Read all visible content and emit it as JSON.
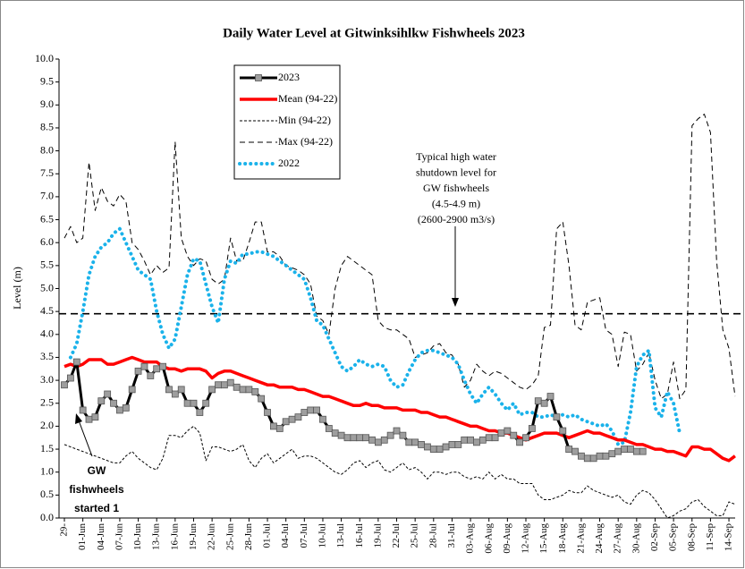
{
  "chart_data": {
    "type": "line",
    "title": "Daily Water Level at Gitwinksihlkw Fishwheels 2023",
    "y_label": "Level (m)",
    "categories": [
      "29-",
      null,
      null,
      "01-Jun",
      null,
      null,
      "04-Jun",
      null,
      null,
      "07-Jun",
      null,
      null,
      "10-Jun",
      null,
      null,
      "13-Jun",
      null,
      null,
      "16-Jun",
      null,
      null,
      "19-Jun",
      null,
      null,
      "22-Jun",
      null,
      null,
      "25-Jun",
      null,
      null,
      "28-Jun",
      null,
      null,
      "01-Jul",
      null,
      null,
      "04-Jul",
      null,
      null,
      "07-Jul",
      null,
      null,
      "10-Jul",
      null,
      null,
      "13-Jul",
      null,
      null,
      "16-Jul",
      null,
      null,
      "19-Jul",
      null,
      null,
      "22-Jul",
      null,
      null,
      "25-Jul",
      null,
      null,
      "28-Jul",
      null,
      null,
      "31-Jul",
      null,
      null,
      "03-Aug",
      null,
      null,
      "06-Aug",
      null,
      null,
      "09-Aug",
      null,
      null,
      "12-Aug",
      null,
      null,
      "15-Aug",
      null,
      null,
      "18-Aug",
      null,
      null,
      "21-Aug",
      null,
      null,
      "24-Aug",
      null,
      null,
      "27-Aug",
      null,
      null,
      "30-Aug",
      null,
      null,
      "02-Sep",
      null,
      null,
      "05-Sep",
      null,
      null,
      "08-Sep",
      null,
      null,
      "11-Sep",
      null,
      null,
      "14-Sep",
      null
    ],
    "series": [
      {
        "name": "2023",
        "color": "#000000",
        "marker_color": "#9e9e9e",
        "line_style": "solid-marker",
        "values": [
          2.9,
          3.05,
          3.4,
          2.35,
          2.15,
          2.2,
          2.55,
          2.7,
          2.5,
          2.35,
          2.4,
          2.8,
          3.2,
          3.3,
          3.1,
          3.25,
          3.3,
          2.8,
          2.7,
          2.8,
          2.5,
          2.5,
          2.3,
          2.5,
          2.8,
          2.9,
          2.9,
          2.95,
          2.85,
          2.8,
          2.8,
          2.75,
          2.6,
          2.3,
          2.0,
          1.95,
          2.1,
          2.15,
          2.2,
          2.3,
          2.35,
          2.35,
          2.15,
          1.95,
          1.85,
          1.8,
          1.75,
          1.75,
          1.75,
          1.75,
          1.7,
          1.65,
          1.7,
          1.8,
          1.9,
          1.8,
          1.65,
          1.65,
          1.6,
          1.55,
          1.5,
          1.5,
          1.55,
          1.6,
          1.6,
          1.7,
          1.7,
          1.65,
          1.7,
          1.75,
          1.75,
          1.85,
          1.9,
          1.8,
          1.65,
          1.75,
          1.95,
          2.55,
          2.5,
          2.65,
          2.2,
          1.9,
          1.5,
          1.45,
          1.35,
          1.3,
          1.3,
          1.35,
          1.35,
          1.4,
          1.45,
          1.5,
          1.5,
          1.45,
          1.45,
          null,
          null,
          null,
          null,
          null,
          null,
          null,
          null,
          null,
          null,
          null,
          null,
          null,
          null,
          null
        ]
      },
      {
        "name": "Mean (94-22)",
        "color": "#ff0000",
        "line_style": "thick",
        "values": [
          3.3,
          3.35,
          3.3,
          3.35,
          3.45,
          3.45,
          3.45,
          3.35,
          3.35,
          3.4,
          3.45,
          3.5,
          3.45,
          3.4,
          3.4,
          3.4,
          3.3,
          3.25,
          3.25,
          3.2,
          3.25,
          3.25,
          3.25,
          3.2,
          3.05,
          3.15,
          3.2,
          3.2,
          3.15,
          3.1,
          3.05,
          3.0,
          2.95,
          2.9,
          2.9,
          2.85,
          2.85,
          2.85,
          2.8,
          2.8,
          2.75,
          2.7,
          2.65,
          2.65,
          2.6,
          2.55,
          2.5,
          2.45,
          2.45,
          2.5,
          2.45,
          2.45,
          2.4,
          2.4,
          2.4,
          2.35,
          2.35,
          2.35,
          2.3,
          2.3,
          2.25,
          2.2,
          2.2,
          2.15,
          2.1,
          2.05,
          2.0,
          2.0,
          1.95,
          1.9,
          1.9,
          1.85,
          1.85,
          1.8,
          1.75,
          1.7,
          1.75,
          1.8,
          1.85,
          1.85,
          1.85,
          1.8,
          1.75,
          1.8,
          1.85,
          1.9,
          1.85,
          1.85,
          1.8,
          1.75,
          1.7,
          1.7,
          1.65,
          1.6,
          1.6,
          1.55,
          1.5,
          1.5,
          1.45,
          1.45,
          1.4,
          1.35,
          1.55,
          1.55,
          1.5,
          1.5,
          1.4,
          1.3,
          1.25,
          1.35
        ]
      },
      {
        "name": "Min (94-22)",
        "color": "#000000",
        "line_style": "fine-dash",
        "values": [
          1.6,
          1.55,
          1.5,
          1.45,
          1.4,
          1.35,
          1.3,
          1.25,
          1.2,
          1.2,
          1.35,
          1.45,
          1.3,
          1.2,
          1.1,
          1.05,
          1.3,
          1.8,
          1.8,
          1.75,
          1.9,
          2.0,
          1.85,
          1.25,
          1.55,
          1.55,
          1.5,
          1.45,
          1.5,
          1.6,
          1.25,
          1.1,
          1.3,
          1.4,
          1.2,
          1.3,
          1.4,
          1.5,
          1.3,
          1.35,
          1.35,
          1.3,
          1.2,
          1.1,
          1.0,
          0.95,
          1.05,
          1.2,
          1.25,
          1.1,
          1.2,
          1.25,
          1.05,
          1.0,
          1.1,
          1.2,
          1.05,
          1.1,
          1.0,
          0.85,
          1.0,
          1.0,
          0.95,
          1.0,
          1.0,
          0.9,
          0.85,
          0.9,
          0.85,
          1.0,
          0.85,
          0.95,
          0.85,
          0.85,
          0.75,
          0.75,
          0.75,
          0.5,
          0.4,
          0.4,
          0.45,
          0.5,
          0.6,
          0.55,
          0.55,
          0.7,
          0.6,
          0.55,
          0.5,
          0.45,
          0.5,
          0.35,
          0.3,
          0.5,
          0.6,
          0.55,
          0.4,
          0.2,
          0.0,
          0.05,
          0.15,
          0.2,
          0.35,
          0.4,
          0.25,
          0.15,
          0.05,
          0.05,
          0.35,
          0.3
        ]
      },
      {
        "name": "Max (94-22)",
        "color": "#000000",
        "line_style": "dash",
        "values": [
          6.1,
          6.35,
          6.0,
          6.1,
          7.75,
          6.7,
          7.2,
          6.9,
          6.8,
          7.05,
          6.9,
          6.0,
          5.85,
          5.6,
          5.3,
          5.5,
          5.35,
          5.45,
          8.2,
          6.1,
          5.7,
          5.5,
          5.65,
          5.6,
          5.2,
          5.1,
          5.2,
          6.1,
          5.6,
          5.6,
          6.0,
          6.45,
          6.45,
          5.8,
          5.8,
          5.7,
          5.5,
          5.45,
          5.4,
          5.3,
          5.1,
          4.4,
          4.3,
          4.0,
          5.0,
          5.5,
          5.7,
          5.6,
          5.5,
          5.4,
          5.3,
          4.3,
          4.15,
          4.1,
          4.1,
          4.0,
          3.9,
          3.5,
          3.55,
          3.6,
          3.75,
          3.8,
          3.6,
          3.55,
          3.35,
          2.85,
          3.0,
          3.35,
          3.2,
          3.1,
          3.2,
          3.15,
          3.05,
          2.95,
          2.85,
          2.8,
          2.9,
          3.1,
          4.15,
          4.2,
          6.3,
          6.45,
          5.5,
          4.2,
          4.1,
          4.7,
          4.75,
          4.8,
          4.1,
          4.0,
          3.3,
          4.05,
          4.0,
          3.2,
          3.35,
          3.6,
          3.0,
          2.6,
          2.7,
          3.4,
          2.6,
          2.8,
          8.55,
          8.7,
          8.8,
          8.4,
          5.6,
          4.1,
          3.7,
          2.65
        ]
      },
      {
        "name": "2022",
        "color": "#1ab2ea",
        "line_style": "dotted",
        "values": [
          null,
          3.5,
          3.8,
          4.5,
          5.3,
          5.7,
          5.9,
          6.0,
          6.2,
          6.3,
          6.0,
          5.7,
          5.4,
          5.3,
          5.2,
          4.5,
          4.0,
          3.7,
          3.9,
          4.6,
          5.3,
          5.65,
          5.6,
          5.1,
          4.6,
          4.25,
          5.2,
          5.6,
          5.55,
          5.75,
          5.75,
          5.8,
          5.8,
          5.75,
          5.7,
          5.6,
          5.5,
          5.4,
          5.3,
          5.2,
          4.8,
          4.3,
          4.2,
          3.9,
          3.6,
          3.3,
          3.2,
          3.3,
          3.45,
          3.35,
          3.3,
          3.35,
          3.3,
          3.0,
          2.85,
          2.9,
          3.2,
          3.45,
          3.6,
          3.65,
          3.65,
          3.6,
          3.55,
          3.5,
          3.35,
          3.0,
          2.7,
          2.5,
          2.7,
          2.85,
          2.7,
          2.5,
          2.35,
          2.5,
          2.25,
          2.3,
          2.3,
          2.2,
          2.2,
          2.25,
          2.2,
          2.25,
          2.2,
          2.25,
          2.15,
          2.1,
          2.05,
          2.0,
          2.05,
          1.9,
          1.6,
          1.65,
          2.3,
          3.3,
          3.55,
          3.65,
          2.4,
          2.2,
          2.75,
          2.5,
          1.85,
          null,
          null,
          null,
          null,
          null,
          null,
          null,
          null,
          null
        ]
      }
    ],
    "ylim": [
      0,
      10
    ],
    "yticks": [
      {
        "value": 0,
        "label": "0.0"
      },
      0.5,
      {
        "value": 1,
        "label": "1.0"
      },
      1.5,
      {
        "value": 2,
        "label": "2.0"
      },
      2.5,
      {
        "value": 3,
        "label": "3.0"
      },
      3.5,
      {
        "value": 4,
        "label": "4.0"
      },
      4.5,
      {
        "value": 5,
        "label": "5.0"
      },
      5.5,
      {
        "value": 6,
        "label": "6.0"
      },
      6.5,
      {
        "value": 7,
        "label": "7.0"
      },
      7.5,
      {
        "value": 8,
        "label": "8.0"
      },
      8.5,
      {
        "value": 9,
        "label": "9.0"
      },
      9.5,
      {
        "value": 10,
        "label": "10.0"
      }
    ],
    "grid": false,
    "legend": "upper-left",
    "shutdown_level": 4.45,
    "annotations": {
      "shutdown": [
        "Typical high water",
        "shutdown level for",
        "GW fishwheels",
        "(4.5-4.9 m)",
        "(2600-2900 m3/s)"
      ],
      "start": [
        "GW",
        "fishwheels",
        "started 1"
      ]
    }
  }
}
